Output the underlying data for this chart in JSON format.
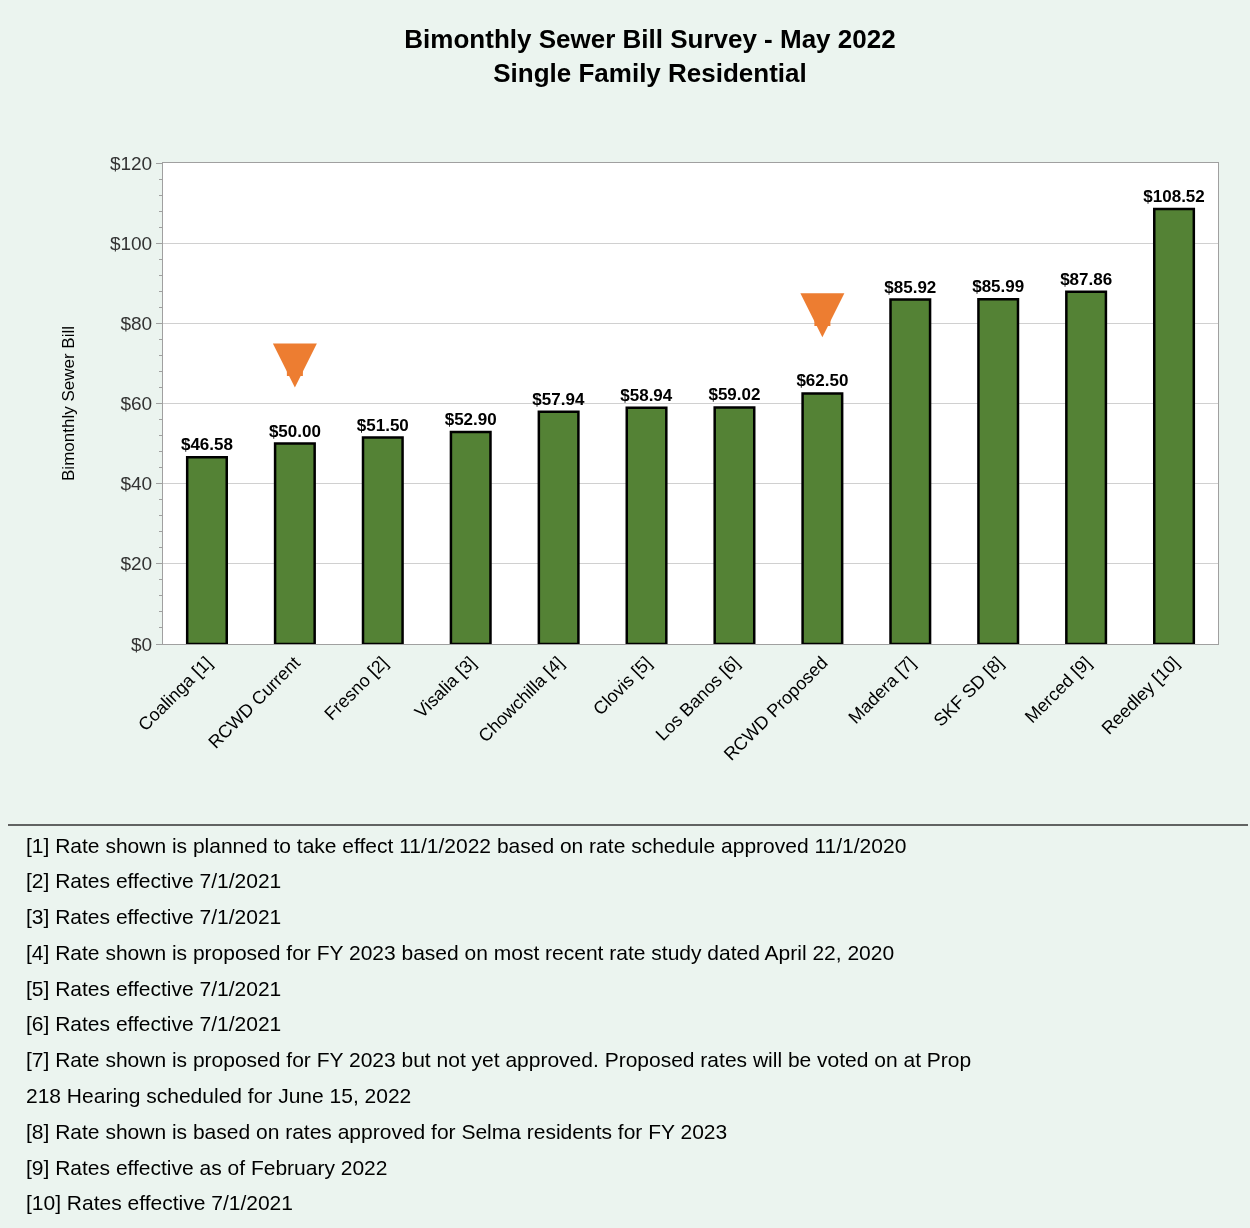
{
  "chart_data": {
    "type": "bar",
    "title": "Bimonthly Sewer Bill Survey - May 2022\nSingle Family Residential",
    "ylabel": "Bimonthly Sewer Bill",
    "categories": [
      "Coalinga [1]",
      "RCWD Current",
      "Fresno [2]",
      "Visalia [3]",
      "Chowchilla [4]",
      "Clovis [5]",
      "Los Banos [6]",
      "RCWD Proposed",
      "Madera [7]",
      "SKF SD [8]",
      "Merced [9]",
      "Reedley [10]"
    ],
    "values": [
      46.58,
      50.0,
      51.5,
      52.9,
      57.94,
      58.94,
      59.02,
      62.5,
      85.92,
      85.99,
      87.86,
      108.52
    ],
    "value_labels": [
      "$46.58",
      "$50.00",
      "$51.50",
      "$52.90",
      "$57.94",
      "$58.94",
      "$59.02",
      "$62.50",
      "$85.92",
      "$85.99",
      "$87.86",
      "$108.52"
    ],
    "color": "#548235",
    "ylim": [
      0,
      120
    ],
    "yticks": [
      {
        "value": 0,
        "label": "$0"
      },
      {
        "value": 20,
        "label": "$20"
      },
      {
        "value": 40,
        "label": "$40"
      },
      {
        "value": 60,
        "label": "$60"
      },
      {
        "value": 80,
        "label": "$80"
      },
      {
        "value": 100,
        "label": "$100"
      },
      {
        "value": 120,
        "label": "$120"
      }
    ],
    "grid": "y",
    "legend": false,
    "annotations": [
      "[1] Rate shown is planned to take effect 11/1/2022 based on rate schedule approved 11/1/2020",
      "[2] Rates effective 7/1/2021",
      "[3] Rates effective 7/1/2021",
      "[4] Rate shown is proposed for FY 2023 based on most recent rate study dated April 22, 2020",
      "[5] Rates effective 7/1/2021",
      "[6] Rates effective 7/1/2021",
      "[7] Rate shown is proposed for FY 2023 but not yet approved. Proposed rates will be voted on at Prop 218 Hearing scheduled for June 15, 2022",
      "[8] Rate shown is based on rates approved for Selma residents for FY 2023",
      "[9] Rates effective as of February 2022",
      "[10] Rates effective 7/1/2021"
    ]
  }
}
